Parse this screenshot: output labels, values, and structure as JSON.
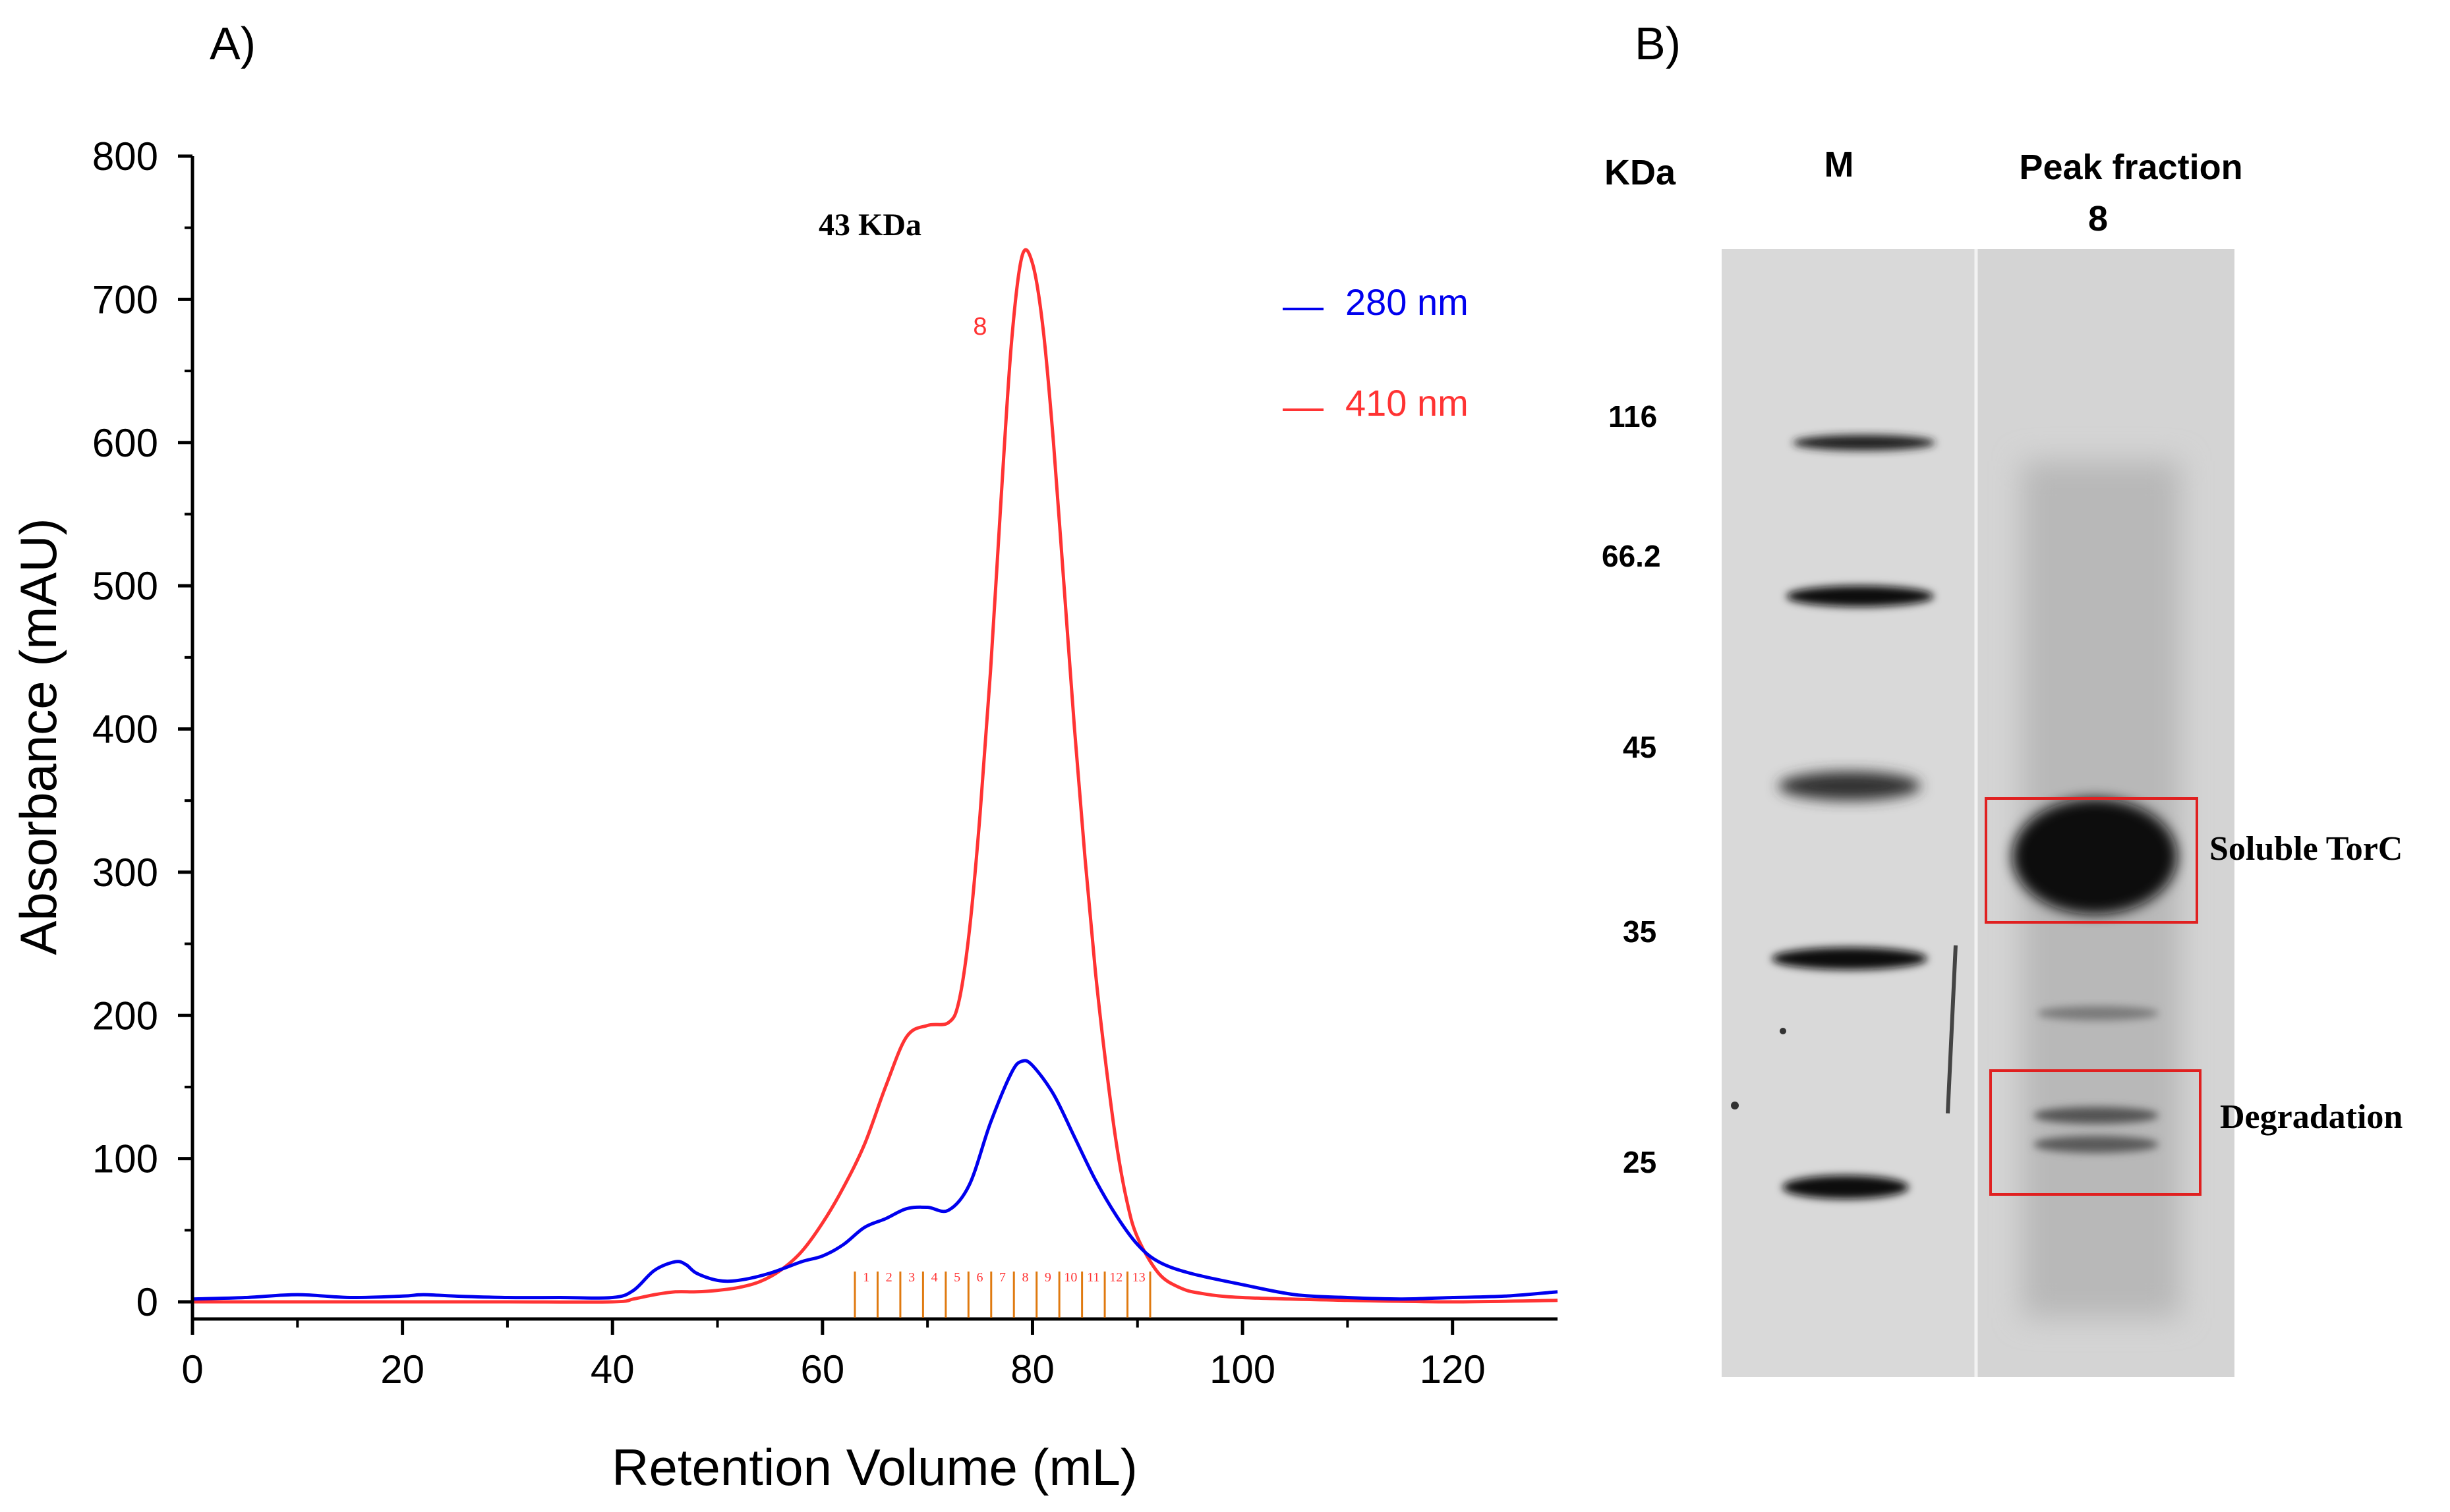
{
  "panel_a": {
    "label": "A)",
    "annotation_mw": "43 KDa",
    "peak_fraction_label": "8",
    "fraction_labels": [
      "1",
      "2",
      "3",
      "4",
      "5",
      "6",
      "7",
      "8",
      "9",
      "10",
      "11",
      "12",
      "13"
    ],
    "colors": {
      "nm280": "#0000ee",
      "nm410": "#ff3333",
      "fractions": "#e07a10"
    }
  },
  "chart_data": {
    "type": "line",
    "title": "",
    "xlabel": "Retention Volume (mL)",
    "ylabel": "Absorbance (mAU)",
    "xlim": [
      0,
      130
    ],
    "ylim": [
      -10,
      800
    ],
    "xticks": [
      0,
      20,
      40,
      60,
      80,
      100,
      120
    ],
    "yticks": [
      0,
      100,
      200,
      300,
      400,
      500,
      600,
      700,
      800
    ],
    "grid": false,
    "legend": "top-right",
    "series": [
      {
        "name": "280 nm",
        "color": "#0000ee",
        "x": [
          0,
          5,
          10,
          15,
          20,
          22,
          25,
          30,
          35,
          40,
          42,
          44,
          46,
          47,
          48,
          50,
          52,
          55,
          58,
          60,
          62,
          64,
          66,
          68,
          70,
          72,
          74,
          76,
          78,
          79,
          80,
          82,
          84,
          86,
          88,
          90,
          92,
          95,
          100,
          105,
          110,
          115,
          120,
          125,
          130
        ],
        "y": [
          2,
          3,
          5,
          3,
          4,
          5,
          4,
          3,
          3,
          3,
          8,
          22,
          28,
          26,
          20,
          15,
          15,
          20,
          28,
          32,
          40,
          52,
          58,
          65,
          66,
          64,
          82,
          125,
          160,
          168,
          165,
          145,
          115,
          85,
          60,
          40,
          28,
          20,
          12,
          5,
          3,
          2,
          3,
          4,
          7
        ]
      },
      {
        "name": "410 nm",
        "color": "#ff3333",
        "x": [
          0,
          10,
          20,
          30,
          40,
          42,
          44,
          46,
          48,
          50,
          52,
          54,
          56,
          58,
          60,
          62,
          64,
          66,
          68,
          70,
          72,
          73,
          74,
          75,
          76,
          77,
          78,
          79,
          80,
          81,
          82,
          83,
          84,
          85,
          86,
          87,
          88,
          89,
          90,
          92,
          94,
          96,
          100,
          110,
          120,
          130
        ],
        "y": [
          0,
          0,
          0,
          0,
          0,
          2,
          5,
          7,
          7,
          8,
          10,
          14,
          22,
          35,
          55,
          80,
          110,
          150,
          185,
          193,
          195,
          210,
          260,
          340,
          440,
          560,
          670,
          730,
          725,
          680,
          600,
          500,
          400,
          310,
          230,
          165,
          110,
          70,
          45,
          20,
          10,
          6,
          3,
          1,
          0,
          1
        ]
      }
    ],
    "annotations": [
      "43 KDa",
      "8"
    ]
  },
  "panel_b": {
    "label": "B)",
    "kda_header": "KDa",
    "lane_marker": "M",
    "lane_peak": [
      "Peak fraction",
      "8"
    ],
    "markers": [
      "116",
      "66.2",
      "45",
      "35",
      "25"
    ],
    "box_labels": [
      "Soluble TorC",
      "Degradation"
    ],
    "box_color": "#e02020"
  }
}
